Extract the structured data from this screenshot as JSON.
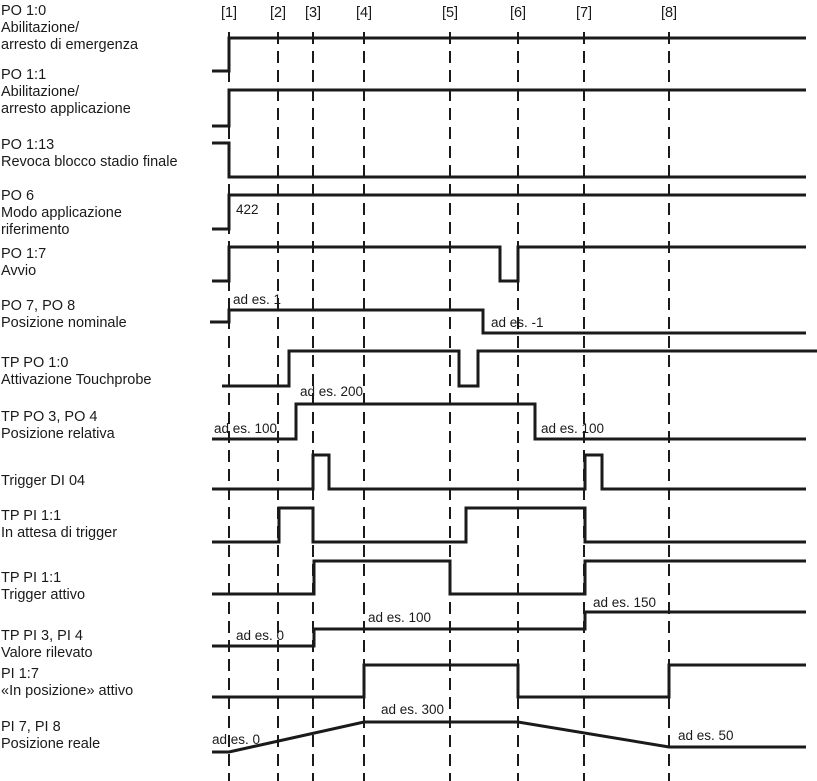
{
  "markers": [
    "[1]",
    "[2]",
    "[3]",
    "[4]",
    "[5]",
    "[6]",
    "[7]",
    "[8]"
  ],
  "signals": [
    {
      "id": "PO 1:0",
      "desc": [
        "Abilitazione/",
        "arresto di emergenza"
      ]
    },
    {
      "id": "PO 1:1",
      "desc": [
        "Abilitazione/",
        "arresto applicazione"
      ]
    },
    {
      "id": "PO 1:13",
      "desc": [
        "Revoca blocco stadio finale"
      ]
    },
    {
      "id": "PO 6",
      "desc": [
        "Modo applicazione",
        "riferimento"
      ]
    },
    {
      "id": "PO 1:7",
      "desc": [
        "Avvio"
      ]
    },
    {
      "id": "PO 7, PO 8",
      "desc": [
        "Posizione nominale"
      ]
    },
    {
      "id": "TP PO 1:0",
      "desc": [
        "Attivazione Touchprobe"
      ]
    },
    {
      "id": "TP PO 3, PO 4",
      "desc": [
        "Posizione relativa"
      ]
    },
    {
      "id": "Trigger DI 04",
      "desc": []
    },
    {
      "id": "TP PI 1:1",
      "desc": [
        "In attesa di trigger"
      ]
    },
    {
      "id": "TP PI 1:1",
      "desc": [
        "Trigger attivo"
      ]
    },
    {
      "id": "TP PI 3, PI 4",
      "desc": [
        "Valore rilevato"
      ]
    },
    {
      "id": "PI 1:7",
      "desc": [
        "«In posizione» attivo"
      ]
    },
    {
      "id": "PI 7, PI 8",
      "desc": [
        "Posizione reale"
      ]
    }
  ],
  "annotations": [
    "422",
    "ad es. 1",
    "ad es. -1",
    "ad es. 100",
    "ad es. 200",
    "ad es. 100",
    "ad es. 0",
    "ad es. 100",
    "ad es. 150",
    "ad es. 0",
    "ad es. 300",
    "ad es. 50"
  ]
}
